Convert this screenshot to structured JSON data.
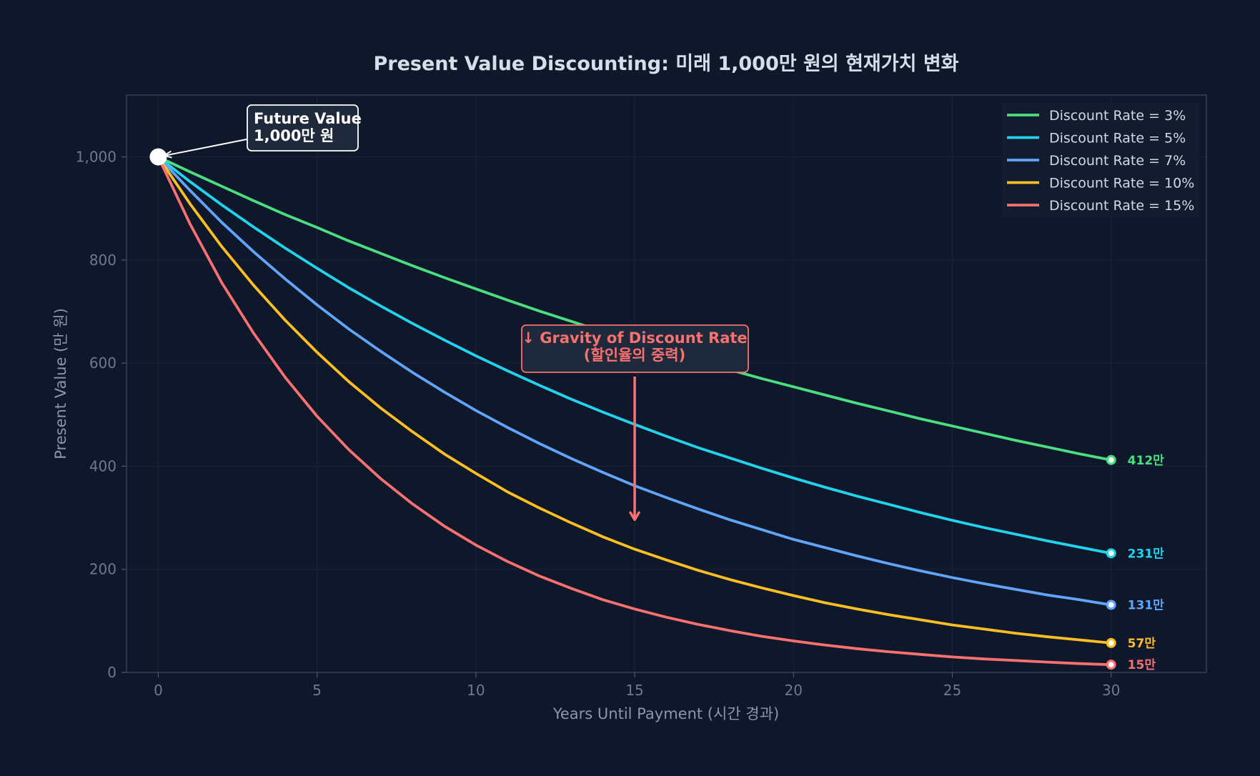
{
  "chart_data": {
    "type": "line",
    "title": "Present Value Discounting: 미래 1,000만 원의 현재가치 변화",
    "xlabel": "Years Until Payment (시간 경과)",
    "ylabel": "Present Value (만 원)",
    "xlim": [
      -1,
      33
    ],
    "ylim": [
      0,
      1120
    ],
    "x_ticks": [
      0,
      5,
      10,
      15,
      20,
      25,
      30
    ],
    "y_ticks": [
      0,
      200,
      400,
      600,
      800,
      1000
    ],
    "y_tick_labels": [
      "0",
      "200",
      "400",
      "600",
      "800",
      "1,000"
    ],
    "grid": true,
    "legend_position": "top-right",
    "x": [
      0,
      1,
      2,
      3,
      4,
      5,
      6,
      7,
      8,
      9,
      10,
      11,
      12,
      13,
      14,
      15,
      16,
      17,
      18,
      19,
      20,
      21,
      22,
      23,
      24,
      25,
      26,
      27,
      28,
      29,
      30
    ],
    "series": [
      {
        "name": "Discount Rate = 3%",
        "color": "#4ade80",
        "values": [
          1000,
          971,
          943,
          915,
          888,
          863,
          837,
          813,
          789,
          766,
          744,
          722,
          701,
          681,
          661,
          642,
          623,
          605,
          587,
          570,
          554,
          538,
          522,
          507,
          492,
          478,
          464,
          450,
          437,
          424,
          412
        ],
        "end_label": "412만"
      },
      {
        "name": "Discount Rate = 5%",
        "color": "#22d3ee",
        "values": [
          1000,
          952,
          907,
          864,
          823,
          784,
          746,
          711,
          677,
          645,
          614,
          585,
          557,
          530,
          505,
          481,
          458,
          436,
          416,
          396,
          377,
          359,
          342,
          326,
          310,
          295,
          281,
          268,
          255,
          243,
          231
        ],
        "end_label": "231만"
      },
      {
        "name": "Discount Rate = 7%",
        "color": "#60a5fa",
        "values": [
          1000,
          935,
          873,
          816,
          763,
          713,
          666,
          623,
          582,
          544,
          508,
          475,
          444,
          415,
          388,
          362,
          339,
          317,
          296,
          277,
          258,
          242,
          226,
          211,
          197,
          184,
          172,
          161,
          150,
          141,
          131
        ],
        "end_label": "131만"
      },
      {
        "name": "Discount Rate = 10%",
        "color": "#fbbf24",
        "values": [
          1000,
          909,
          826,
          751,
          683,
          621,
          564,
          513,
          467,
          424,
          386,
          350,
          319,
          290,
          263,
          239,
          218,
          198,
          180,
          164,
          149,
          135,
          123,
          112,
          102,
          92,
          84,
          76,
          69,
          63,
          57
        ],
        "end_label": "57만"
      },
      {
        "name": "Discount Rate = 15%",
        "color": "#f87171",
        "values": [
          1000,
          870,
          756,
          658,
          572,
          497,
          432,
          376,
          327,
          284,
          247,
          215,
          187,
          163,
          141,
          123,
          107,
          93,
          81,
          70,
          61,
          53,
          46,
          40,
          35,
          30,
          26,
          23,
          20,
          17,
          15
        ],
        "end_label": "15만"
      }
    ],
    "annotations": [
      {
        "id": "future-value",
        "lines": [
          "Future Value",
          "1,000만 원"
        ],
        "point": [
          0,
          1000
        ]
      },
      {
        "id": "gravity",
        "lines": [
          "↓ Gravity of Discount Rate",
          "(할인율의 중력)"
        ],
        "point": [
          15,
          310
        ]
      }
    ],
    "colors": {
      "background": "#0f172a",
      "frame": "#334155",
      "grid": "#1b2538",
      "annotation_box": "#1e293b"
    }
  }
}
